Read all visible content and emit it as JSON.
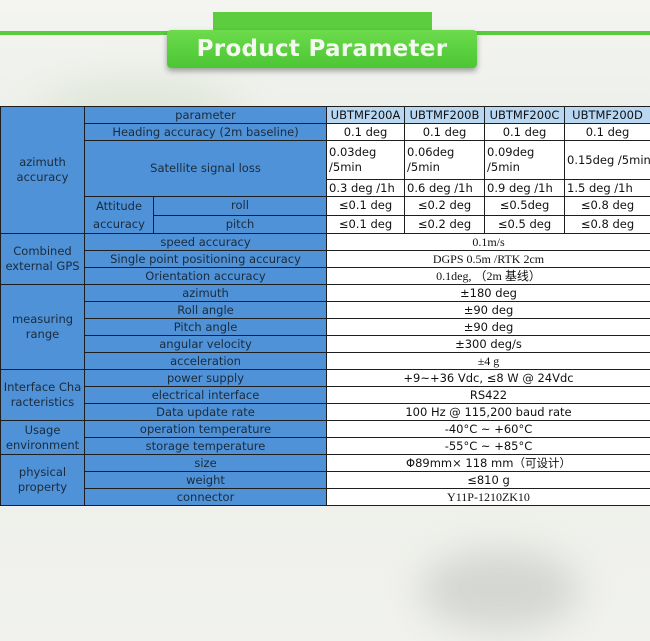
{
  "title": "Product Parameter",
  "colors": {
    "accent_green": "#58cc3c",
    "label_blue": "#4f92d8",
    "header_blue": "#b8d7f3"
  },
  "header": {
    "label": "parameter",
    "models": [
      "UBTMF200A",
      "UBTMF200B",
      "UBTMF200C",
      "UBTMF200D"
    ]
  },
  "azimuth": {
    "group": "azimuth accuracy",
    "heading": {
      "label": "Heading accuracy (2m baseline)",
      "values": [
        "0.1 deg",
        "0.1 deg",
        "0.1 deg",
        "0.1 deg"
      ]
    },
    "satellite": {
      "label": "Satellite signal loss",
      "per5min": [
        "0.03deg /5min",
        "0.06deg /5min",
        "0.09deg /5min",
        "0.15deg /5min"
      ],
      "per1h": [
        "0.3 deg /1h",
        "0.6 deg /1h",
        "0.9 deg /1h",
        "1.5 deg /1h"
      ]
    },
    "attitude": {
      "label": "Attitude accuracy",
      "roll": {
        "label": "roll",
        "values": [
          "≤0.1 deg",
          "≤0.2 deg",
          "≤0.5deg",
          "≤0.8 deg"
        ]
      },
      "pitch": {
        "label": "pitch",
        "values": [
          "≤0.1 deg",
          "≤0.2 deg",
          "≤0.5 deg",
          "≤0.8 deg"
        ]
      }
    }
  },
  "groups": [
    {
      "label": "Combined external GPS",
      "rows": [
        {
          "label": "speed accuracy",
          "value": "0.1m/s",
          "serif": true
        },
        {
          "label": "Single point positioning accuracy",
          "value": "DGPS 0.5m /RTK  2cm",
          "serif": true
        },
        {
          "label": "Orientation accuracy",
          "value": "0.1deg, （2m 基线）",
          "serif": true
        }
      ]
    },
    {
      "label": "measuring range",
      "rows": [
        {
          "label": "azimuth",
          "value": "±180 deg"
        },
        {
          "label": "Roll angle",
          "value": "±90 deg"
        },
        {
          "label": "Pitch angle",
          "value": "±90 deg"
        },
        {
          "label": "angular velocity",
          "value": "±300 deg/s"
        },
        {
          "label": "acceleration",
          "value": "±4 g",
          "serif": true
        }
      ]
    },
    {
      "label": "Interface Characteristics",
      "rows": [
        {
          "label": "power supply",
          "value": "+9~+36 Vdc, ≤8 W @ 24Vdc"
        },
        {
          "label": "electrical interface",
          "value": "RS422"
        },
        {
          "label": "Data update rate",
          "value": "100 Hz @ 115,200 baud rate"
        }
      ]
    },
    {
      "label": "Usage environment",
      "rows": [
        {
          "label": "operation temperature",
          "value": "-40°C ~ +60°C"
        },
        {
          "label": "storage temperature",
          "value": "-55°C ~ +85°C"
        }
      ]
    },
    {
      "label": "physical property",
      "rows": [
        {
          "label": "size",
          "value": "Φ89mm× 118 mm（可设计）"
        },
        {
          "label": "weight",
          "value": "≤810 g"
        },
        {
          "label": "connector",
          "value": "Y11P-1210ZK10",
          "serif": true
        }
      ]
    }
  ]
}
